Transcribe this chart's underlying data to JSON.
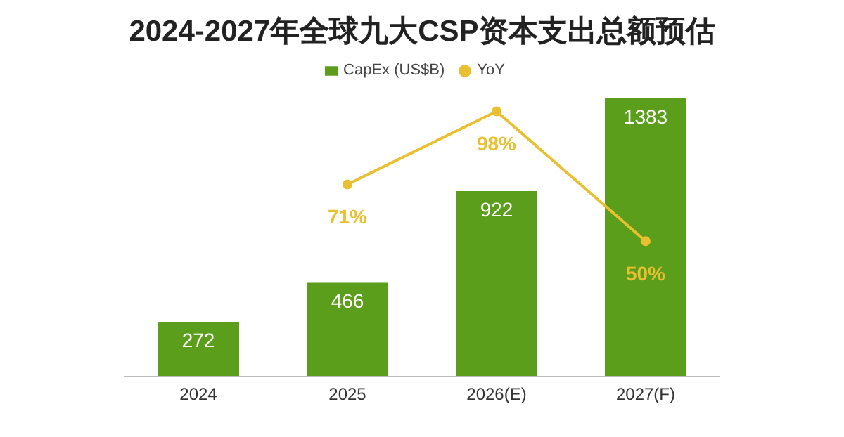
{
  "chart_data": {
    "type": "bar",
    "title": "2024-2027年全球九大CSP资本支出总额预估",
    "categories": [
      "2024",
      "2025",
      "2026(E)",
      "2027(F)"
    ],
    "series": [
      {
        "name": "CapEx (US$B)",
        "color": "#5a9e1c",
        "values": [
          272,
          466,
          922,
          1383
        ]
      },
      {
        "name": "YoY",
        "type": "line",
        "axis": "y2",
        "color": "#e8c030",
        "values": [
          null,
          71,
          98,
          50
        ],
        "value_labels": [
          null,
          "71%",
          "98%",
          "50%"
        ]
      }
    ],
    "data_labels": true,
    "legend": "top",
    "tick_labels": "x",
    "marker": "circle"
  }
}
